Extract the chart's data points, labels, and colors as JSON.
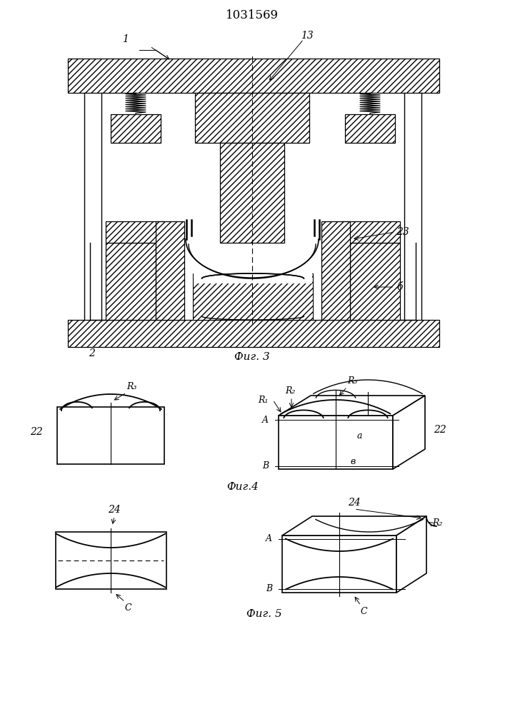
{
  "title": "1031569",
  "fig3_label": "Фиг. 3",
  "fig4_label": "Фиг.4",
  "fig5_label": "Фиг. 5",
  "label_1": "1",
  "label_2": "2",
  "label_6": "б",
  "label_13": "13",
  "label_22": "22",
  "label_23": "23",
  "label_24": "24",
  "label_R1": "R₁",
  "label_R2": "R₂",
  "label_R3": "R₃",
  "label_A": "A",
  "label_B": "B",
  "label_a": "a",
  "label_b": "в",
  "label_C": "C"
}
